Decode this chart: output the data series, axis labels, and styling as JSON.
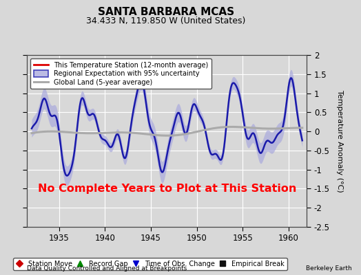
{
  "title": "SANTA BARBARA MCAS",
  "subtitle": "34.433 N, 119.850 W (United States)",
  "ylabel": "Temperature Anomaly (°C)",
  "xlim": [
    1931.5,
    1962.0
  ],
  "ylim": [
    -2.5,
    2.0
  ],
  "yticks": [
    -2.5,
    -2.0,
    -1.5,
    -1.0,
    -0.5,
    0.0,
    0.5,
    1.0,
    1.5,
    2.0
  ],
  "xticks": [
    1935,
    1940,
    1945,
    1950,
    1955,
    1960
  ],
  "no_data_text": "No Complete Years to Plot at This Station",
  "footer_left": "Data Quality Controlled and Aligned at Breakpoints",
  "footer_right": "Berkeley Earth",
  "legend_labels": [
    "This Temperature Station (12-month average)",
    "Regional Expectation with 95% uncertainty",
    "Global Land (5-year average)"
  ],
  "legend_markers": [
    {
      "label": "Station Move",
      "marker": "D",
      "color": "#cc0000"
    },
    {
      "label": "Record Gap",
      "marker": "^",
      "color": "#008800"
    },
    {
      "label": "Time of Obs. Change",
      "marker": "v",
      "color": "#0000cc"
    },
    {
      "label": "Empirical Break",
      "marker": "s",
      "color": "#111111"
    }
  ],
  "bg_color": "#d8d8d8",
  "plot_bg_color": "#d8d8d8",
  "grid_color": "#ffffff",
  "regional_fill_color": "#aaaadd",
  "regional_line_color": "#1a1aaa",
  "global_color": "#aaaaaa",
  "station_line_color": "#dd0000",
  "title_fontsize": 11,
  "subtitle_fontsize": 9
}
